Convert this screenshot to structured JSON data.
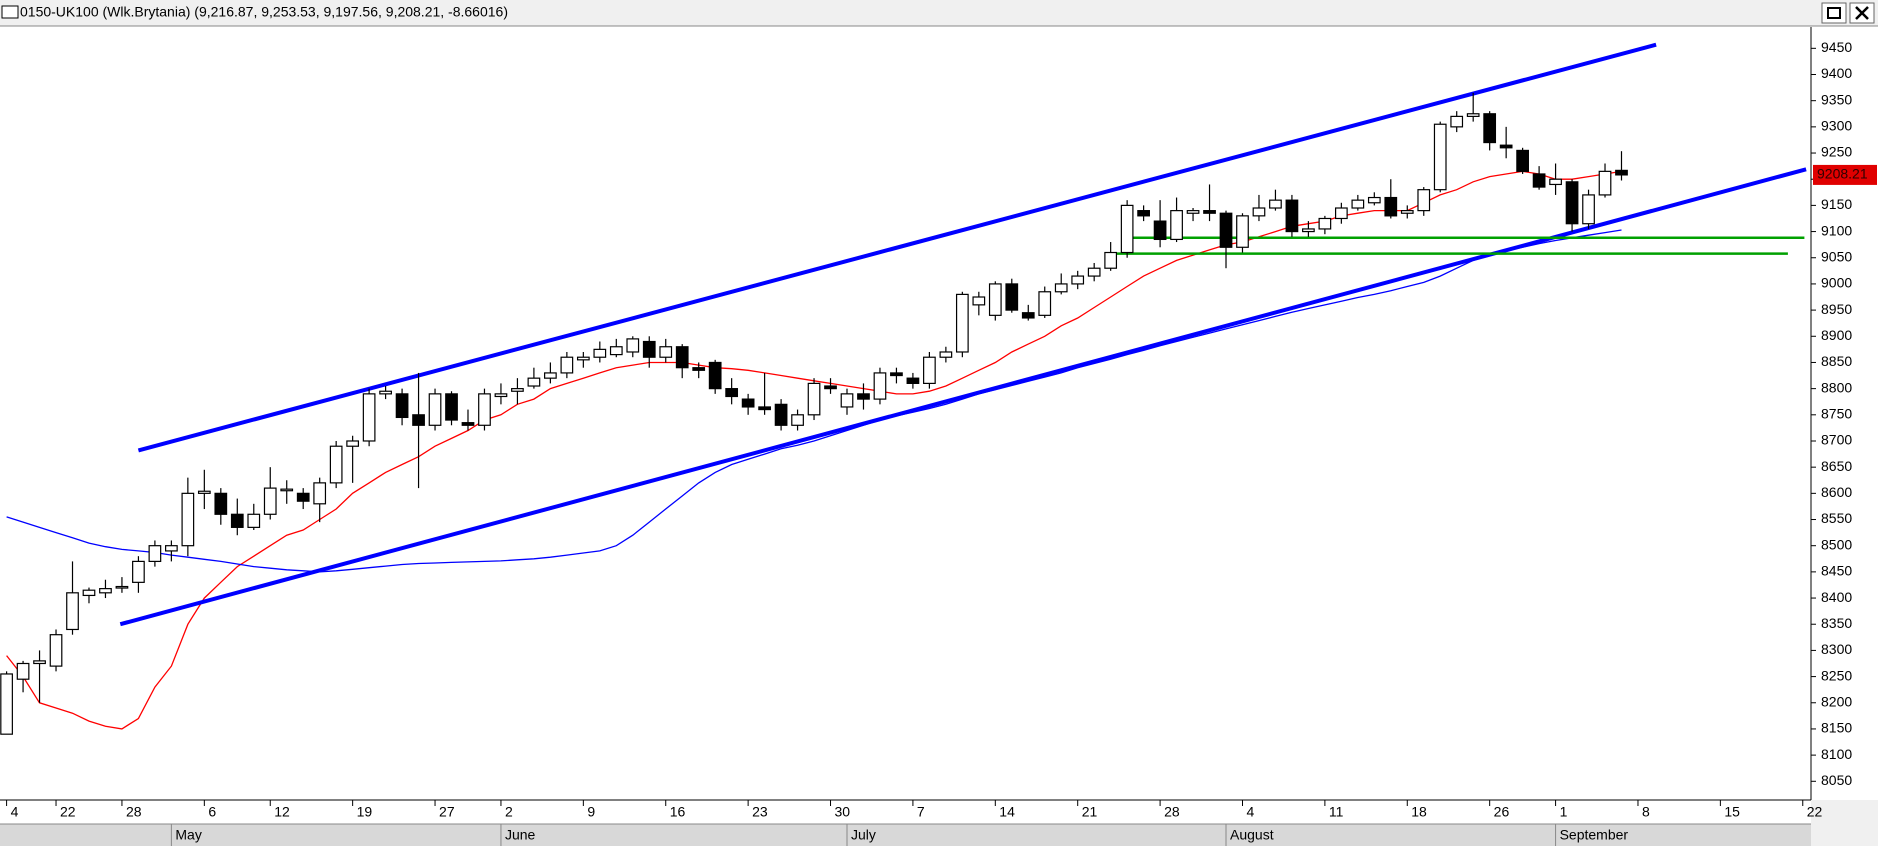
{
  "chart_data": {
    "type": "candlestick",
    "title": "0150-UK100 (Wlk.Brytania) (9,216.87, 9,253.53, 9,197.56, 9,208.21, -8.66016)",
    "open": [
      8140,
      8245,
      8275,
      8270,
      8340,
      8405,
      8410,
      8420,
      8430,
      8470,
      8490,
      8500,
      8600,
      8600,
      8560,
      8535,
      8560,
      8605,
      8600,
      8580,
      8620,
      8690,
      8700,
      8790,
      8790,
      8750,
      8730,
      8790,
      8735,
      8730,
      8785,
      8795,
      8805,
      8820,
      8830,
      8855,
      8860,
      8865,
      8870,
      8890,
      8860,
      8880,
      8840,
      8850,
      8800,
      8780,
      8765,
      8770,
      8730,
      8750,
      8805,
      8765,
      8790,
      8780,
      8830,
      8820,
      8810,
      8860,
      8870,
      8960,
      8940,
      9000,
      8945,
      8940,
      8985,
      9000,
      9015,
      9030,
      9060,
      9140,
      9120,
      9085,
      9135,
      9140,
      9135,
      9070,
      9130,
      9145,
      9160,
      9100,
      9105,
      9125,
      9145,
      9155,
      9165,
      9135,
      9140,
      9180,
      9300,
      9320,
      9325,
      9265,
      9255,
      9210,
      9190,
      9195,
      9115,
      9170,
      9216.87
    ],
    "high": [
      8260,
      8280,
      8300,
      8340,
      8470,
      8420,
      8435,
      8440,
      8480,
      8510,
      8510,
      8630,
      8645,
      8610,
      8590,
      8580,
      8650,
      8625,
      8610,
      8630,
      8700,
      8710,
      8800,
      8805,
      8800,
      8830,
      8800,
      8795,
      8760,
      8800,
      8810,
      8820,
      8840,
      8850,
      8870,
      8870,
      8890,
      8895,
      8900,
      8900,
      8895,
      8885,
      8850,
      8855,
      8820,
      8790,
      8830,
      8780,
      8760,
      8820,
      8820,
      8800,
      8810,
      8840,
      8840,
      8830,
      8870,
      8880,
      8985,
      8985,
      9005,
      9010,
      8960,
      8995,
      9020,
      9025,
      9040,
      9080,
      9160,
      9150,
      9160,
      9165,
      9145,
      9190,
      9140,
      9135,
      9170,
      9180,
      9170,
      9120,
      9130,
      9155,
      9170,
      9175,
      9200,
      9150,
      9185,
      9310,
      9330,
      9365,
      9330,
      9300,
      9260,
      9225,
      9230,
      9200,
      9180,
      9230,
      9253.53
    ],
    "low": [
      8140,
      8220,
      8200,
      8260,
      8330,
      8390,
      8400,
      8410,
      8410,
      8460,
      8470,
      8480,
      8570,
      8540,
      8520,
      8530,
      8550,
      8580,
      8570,
      8545,
      8610,
      8620,
      8690,
      8780,
      8730,
      8610,
      8720,
      8730,
      8720,
      8720,
      8770,
      8770,
      8800,
      8810,
      8820,
      8840,
      8850,
      8860,
      8860,
      8840,
      8850,
      8820,
      8820,
      8790,
      8770,
      8750,
      8750,
      8720,
      8720,
      8740,
      8790,
      8750,
      8760,
      8770,
      8810,
      8800,
      8800,
      8850,
      8860,
      8940,
      8930,
      8945,
      8930,
      8935,
      8980,
      8990,
      9005,
      9025,
      9050,
      9120,
      9070,
      9080,
      9120,
      9120,
      9030,
      9060,
      9120,
      9140,
      9090,
      9090,
      9095,
      9115,
      9140,
      9150,
      9125,
      9125,
      9130,
      9175,
      9290,
      9310,
      9255,
      9240,
      9210,
      9180,
      9170,
      9100,
      9105,
      9165,
      9197.56
    ],
    "close": [
      8255,
      8275,
      8280,
      8330,
      8410,
      8415,
      8418,
      8422,
      8470,
      8500,
      8500,
      8600,
      8604,
      8560,
      8535,
      8560,
      8610,
      8608,
      8585,
      8620,
      8690,
      8700,
      8790,
      8795,
      8745,
      8730,
      8790,
      8740,
      8730,
      8790,
      8790,
      8800,
      8820,
      8830,
      8860,
      8860,
      8875,
      8880,
      8895,
      8860,
      8880,
      8840,
      8835,
      8800,
      8785,
      8765,
      8760,
      8730,
      8750,
      8810,
      8800,
      8790,
      8780,
      8830,
      8825,
      8810,
      8860,
      8870,
      8980,
      8975,
      9000,
      8950,
      8935,
      8985,
      9000,
      9015,
      9030,
      9060,
      9150,
      9130,
      9085,
      9140,
      9140,
      9135,
      9070,
      9130,
      9145,
      9160,
      9100,
      9105,
      9125,
      9145,
      9160,
      9165,
      9130,
      9140,
      9180,
      9305,
      9320,
      9325,
      9270,
      9260,
      9215,
      9185,
      9200,
      9115,
      9170,
      9215,
      9208.21
    ],
    "up_color": "#ffffff",
    "down_color": "#000000",
    "moving_averages": [
      {
        "color": "#ff0000",
        "values": [
          8290,
          8250,
          8200,
          8190,
          8180,
          8165,
          8155,
          8150,
          8170,
          8230,
          8270,
          8350,
          8400,
          8430,
          8460,
          8480,
          8500,
          8520,
          8530,
          8550,
          8570,
          8600,
          8620,
          8640,
          8655,
          8670,
          8690,
          8705,
          8720,
          8740,
          8750,
          8770,
          8780,
          8800,
          8810,
          8820,
          8830,
          8840,
          8845,
          8850,
          8850,
          8850,
          8845,
          8840,
          8838,
          8835,
          8830,
          8825,
          8820,
          8815,
          8810,
          8805,
          8800,
          8795,
          8790,
          8790,
          8795,
          8805,
          8820,
          8835,
          8850,
          8870,
          8885,
          8900,
          8920,
          8935,
          8955,
          8975,
          8995,
          9015,
          9030,
          9045,
          9055,
          9065,
          9075,
          9080,
          9090,
          9100,
          9110,
          9115,
          9120,
          9130,
          9135,
          9140,
          9140,
          9140,
          9155,
          9170,
          9180,
          9195,
          9205,
          9210,
          9215,
          9210,
          9200,
          9200,
          9205,
          9210,
          9215
        ]
      },
      {
        "color": "#0000ff",
        "values": [
          8555,
          8545,
          8535,
          8525,
          8515,
          8505,
          8498,
          8493,
          8490,
          8487,
          8482,
          8478,
          8474,
          8470,
          8465,
          8460,
          8457,
          8454,
          8452,
          8450,
          8452,
          8455,
          8458,
          8461,
          8464,
          8466,
          8467,
          8468,
          8469,
          8470,
          8471,
          8473,
          8475,
          8478,
          8482,
          8486,
          8490,
          8500,
          8520,
          8545,
          8570,
          8595,
          8620,
          8640,
          8655,
          8665,
          8675,
          8685,
          8692,
          8700,
          8710,
          8720,
          8730,
          8740,
          8748,
          8755,
          8762,
          8770,
          8780,
          8790,
          8798,
          8806,
          8814,
          8822,
          8830,
          8840,
          8848,
          8856,
          8865,
          8873,
          8882,
          8890,
          8898,
          8906,
          8914,
          8922,
          8930,
          8938,
          8946,
          8953,
          8960,
          8967,
          8974,
          8980,
          8987,
          8995,
          9003,
          9015,
          9030,
          9045,
          9055,
          9063,
          9070,
          9077,
          9083,
          9088,
          9093,
          9098,
          9103
        ]
      }
    ],
    "trendlines": [
      {
        "color": "#0000ff",
        "x": [
          8.0,
          100.1
        ],
        "values": [
          8682,
          9457
        ]
      },
      {
        "color": "#0000ff",
        "x": [
          6.9,
          109.2
        ],
        "values": [
          8350,
          9219
        ]
      },
      {
        "color": "#00a000",
        "x": [
          68.0,
          109.1
        ],
        "values": [
          9088,
          9088
        ]
      },
      {
        "color": "#00a000",
        "x": [
          67.2,
          108.1
        ],
        "values": [
          9058,
          9058
        ]
      }
    ],
    "xlim": [
      -0.4,
      109.5
    ],
    "ylim": [
      8020,
      9485
    ],
    "yticks": [
      8050,
      8100,
      8150,
      8200,
      8250,
      8300,
      8350,
      8400,
      8450,
      8500,
      8550,
      8600,
      8650,
      8700,
      8750,
      8800,
      8850,
      8900,
      8950,
      9000,
      9050,
      9100,
      9150,
      9200,
      9250,
      9300,
      9350,
      9400,
      9450
    ],
    "xticks": [
      {
        "value": 0,
        "label": "4"
      },
      {
        "value": 3,
        "label": "22"
      },
      {
        "value": 7,
        "label": "28"
      },
      {
        "value": 12,
        "label": "6"
      },
      {
        "value": 16,
        "label": "12"
      },
      {
        "value": 21,
        "label": "19"
      },
      {
        "value": 26,
        "label": "27"
      },
      {
        "value": 30,
        "label": "2"
      },
      {
        "value": 35,
        "label": "9"
      },
      {
        "value": 40,
        "label": "16"
      },
      {
        "value": 45,
        "label": "23"
      },
      {
        "value": 50,
        "label": "30"
      },
      {
        "value": 55,
        "label": "7"
      },
      {
        "value": 60,
        "label": "14"
      },
      {
        "value": 65,
        "label": "21"
      },
      {
        "value": 70,
        "label": "28"
      },
      {
        "value": 75,
        "label": "4"
      },
      {
        "value": 80,
        "label": "11"
      },
      {
        "value": 85,
        "label": "18"
      },
      {
        "value": 90,
        "label": "26"
      },
      {
        "value": 94,
        "label": "1"
      },
      {
        "value": 99,
        "label": "8"
      },
      {
        "value": 104,
        "label": "15"
      },
      {
        "value": 109,
        "label": "22"
      }
    ],
    "month_ticks": [
      {
        "value": 10,
        "label": "May"
      },
      {
        "value": 30,
        "label": "June"
      },
      {
        "value": 51,
        "label": "July"
      },
      {
        "value": 74,
        "label": "August"
      },
      {
        "value": 94,
        "label": "September"
      }
    ]
  }
}
